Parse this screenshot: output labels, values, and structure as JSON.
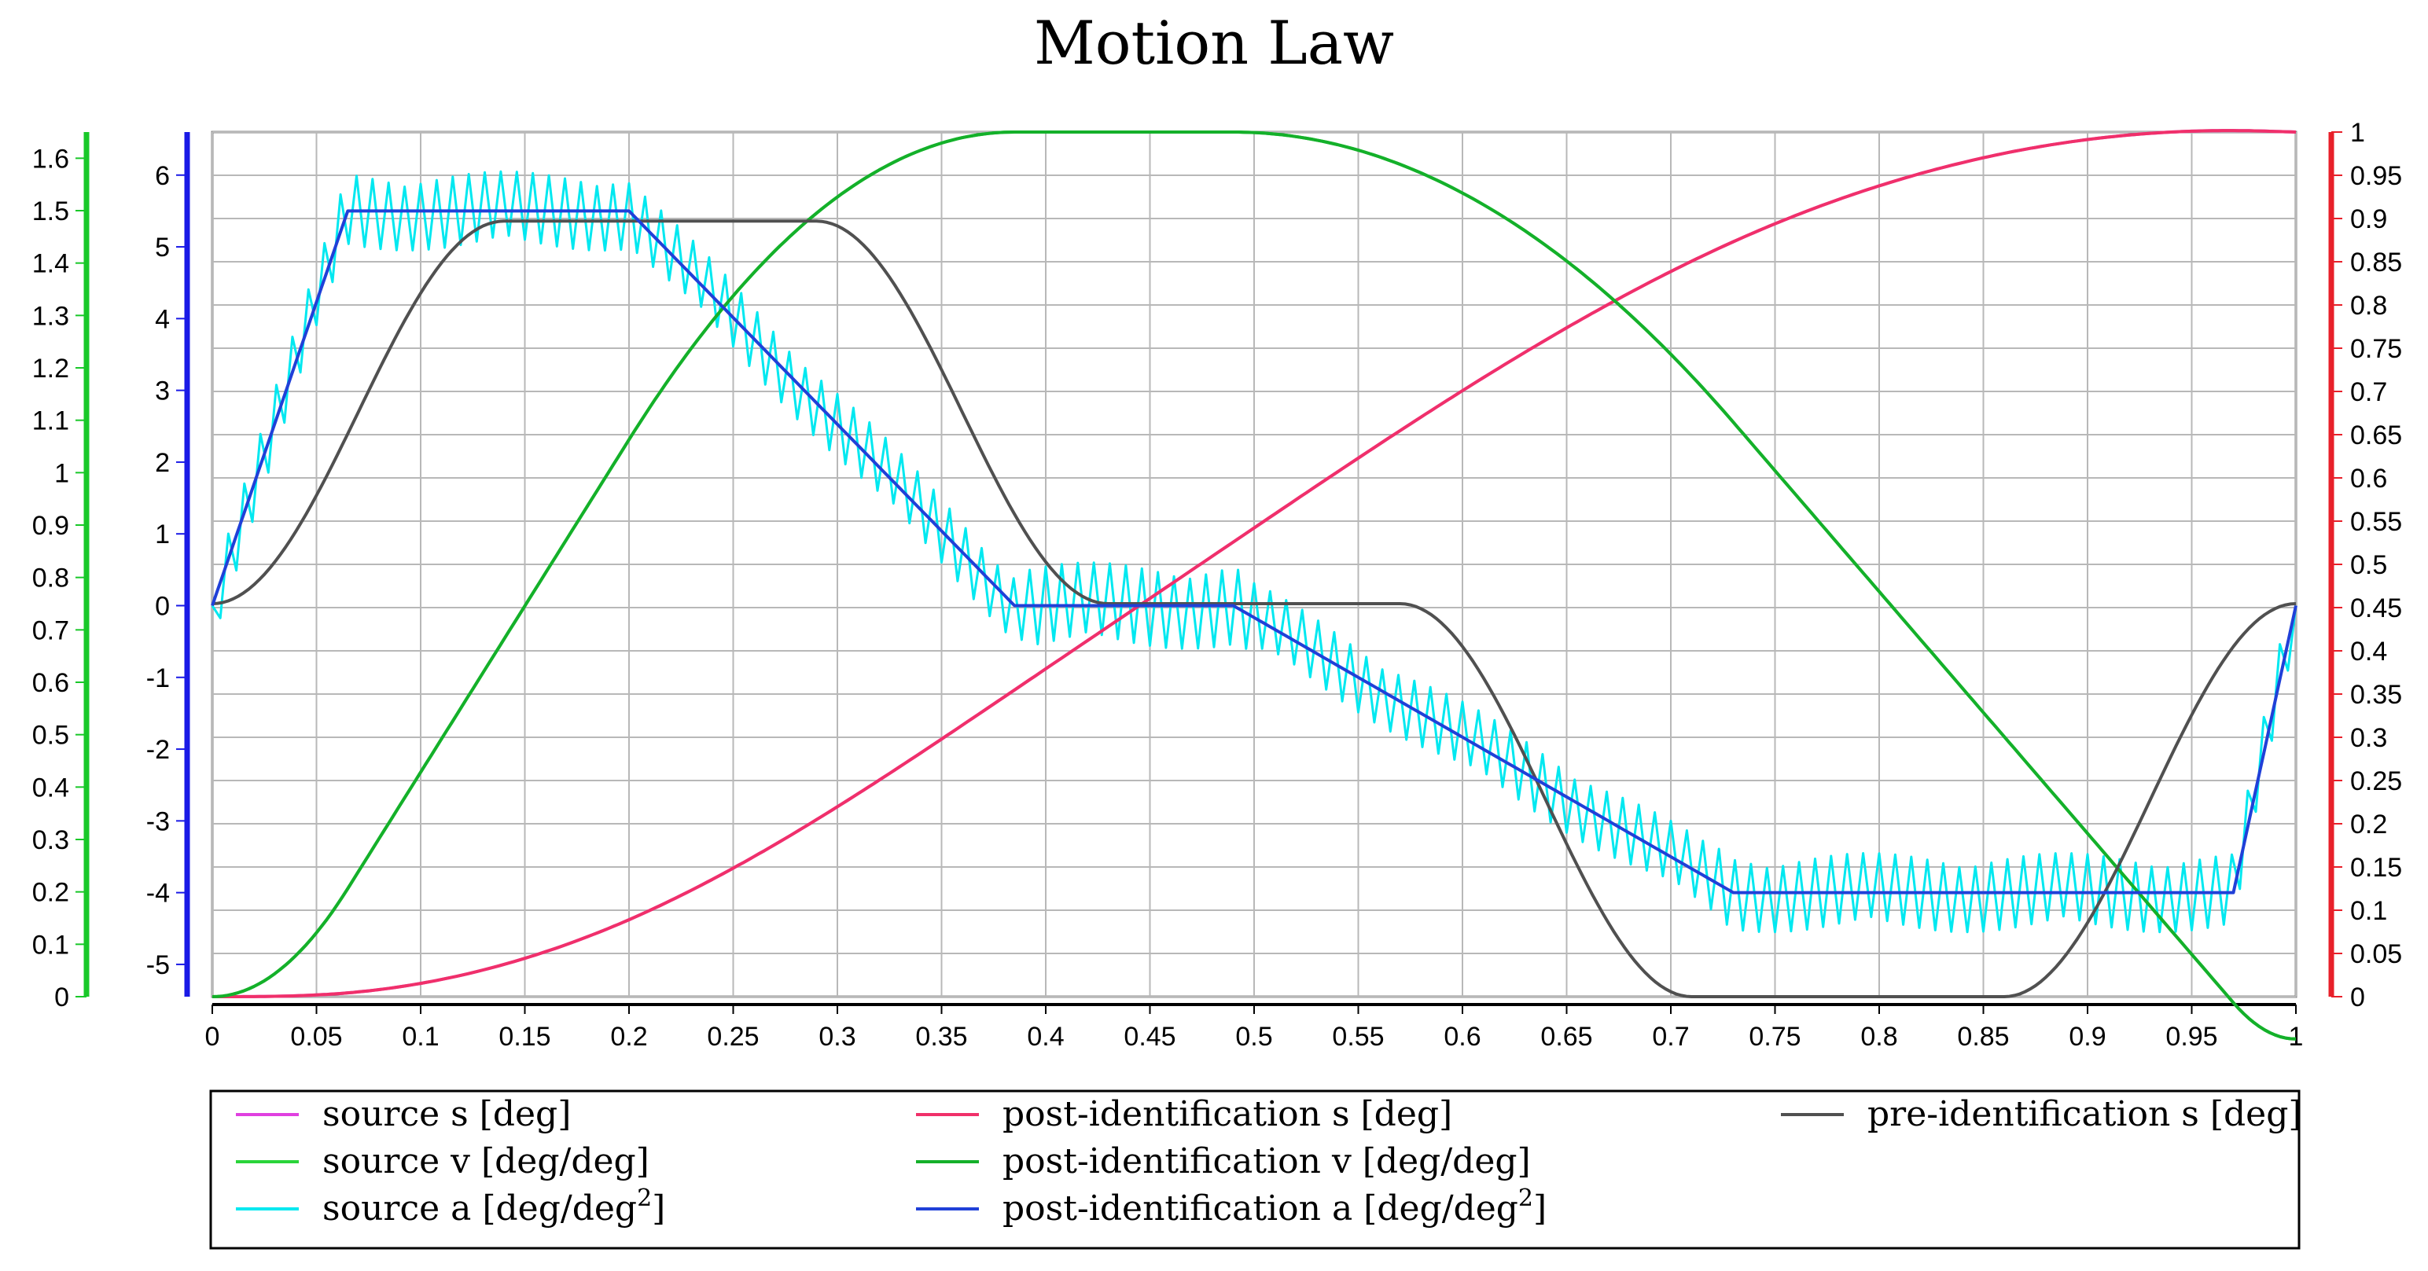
{
  "chart_data": {
    "type": "line",
    "title": "Motion Law",
    "x_range": [
      0,
      1
    ],
    "x_ticks": [
      "0",
      "0.05",
      "0.1",
      "0.15",
      "0.2",
      "0.25",
      "0.3",
      "0.35",
      "0.4",
      "0.45",
      "0.5",
      "0.55",
      "0.6",
      "0.65",
      "0.7",
      "0.75",
      "0.8",
      "0.85",
      "0.9",
      "0.95",
      "1"
    ],
    "axes": {
      "left_v": {
        "color": "#19c829",
        "range": [
          0,
          1.65
        ],
        "ticks": [
          "0",
          "0.1",
          "0.2",
          "0.3",
          "0.4",
          "0.5",
          "0.6",
          "0.7",
          "0.8",
          "0.9",
          "1",
          "1.1",
          "1.2",
          "1.3",
          "1.4",
          "1.5",
          "1.6"
        ]
      },
      "left_a": {
        "color": "#1a1ae6",
        "range": [
          -5.45,
          6.6
        ],
        "ticks": [
          "-5",
          "-4",
          "-3",
          "-2",
          "-1",
          "0",
          "1",
          "2",
          "3",
          "4",
          "5",
          "6"
        ]
      },
      "right_s": {
        "color": "#e8202a",
        "range": [
          0,
          1
        ],
        "ticks": [
          "0",
          "0.05",
          "0.1",
          "0.15",
          "0.2",
          "0.25",
          "0.3",
          "0.35",
          "0.4",
          "0.45",
          "0.5",
          "0.55",
          "0.6",
          "0.65",
          "0.7",
          "0.75",
          "0.8",
          "0.85",
          "0.9",
          "0.95",
          "1"
        ]
      }
    },
    "series": [
      {
        "name": "source s [deg]",
        "color": "#e040e0",
        "axis": "right_s",
        "model": "s_post"
      },
      {
        "name": "source v [deg/deg]",
        "color": "#2ad43a",
        "axis": "left_v",
        "model": "v_post"
      },
      {
        "name": "source a [deg/deg",
        "sup": "2",
        "close": "]",
        "color": "#00e8f0",
        "axis": "left_a",
        "model": "a_noisy"
      },
      {
        "name": "post-identification s [deg]",
        "color": "#f0306a",
        "axis": "right_s",
        "model": "s_post"
      },
      {
        "name": "post-identification v [deg/deg]",
        "color": "#14b02a",
        "axis": "left_v",
        "model": "v_post"
      },
      {
        "name": "post-identification a [deg/deg",
        "sup": "2",
        "close": "]",
        "color": "#2040d8",
        "axis": "left_a",
        "model": "a_post"
      },
      {
        "name": "pre-identification s [deg]",
        "color": "#505050",
        "axis": "left_v",
        "model": "s_pre"
      }
    ],
    "a_post_points": [
      [
        0,
        0
      ],
      [
        0.065,
        5.5
      ],
      [
        0.2,
        5.5
      ],
      [
        0.385,
        0
      ],
      [
        0.49,
        0
      ],
      [
        0.73,
        -4
      ],
      [
        0.97,
        -4
      ],
      [
        1,
        0
      ]
    ],
    "s_pre_points": [
      [
        0,
        0.75
      ],
      [
        0.14,
        1.48
      ],
      [
        0.29,
        1.48
      ],
      [
        0.43,
        0.75
      ],
      [
        0.57,
        0.75
      ],
      [
        0.71,
        0.0
      ],
      [
        0.86,
        0.0
      ],
      [
        1,
        0.75
      ]
    ]
  },
  "legend": {
    "col1": [
      "source s [deg]",
      "source v [deg/deg]",
      "source a [deg/deg"
    ],
    "col2": [
      "post-identification s [deg]",
      "post-identification v [deg/deg]",
      "post-identification a [deg/deg"
    ],
    "col3": [
      "pre-identification s [deg]"
    ],
    "sup": "2",
    "close": "]"
  }
}
